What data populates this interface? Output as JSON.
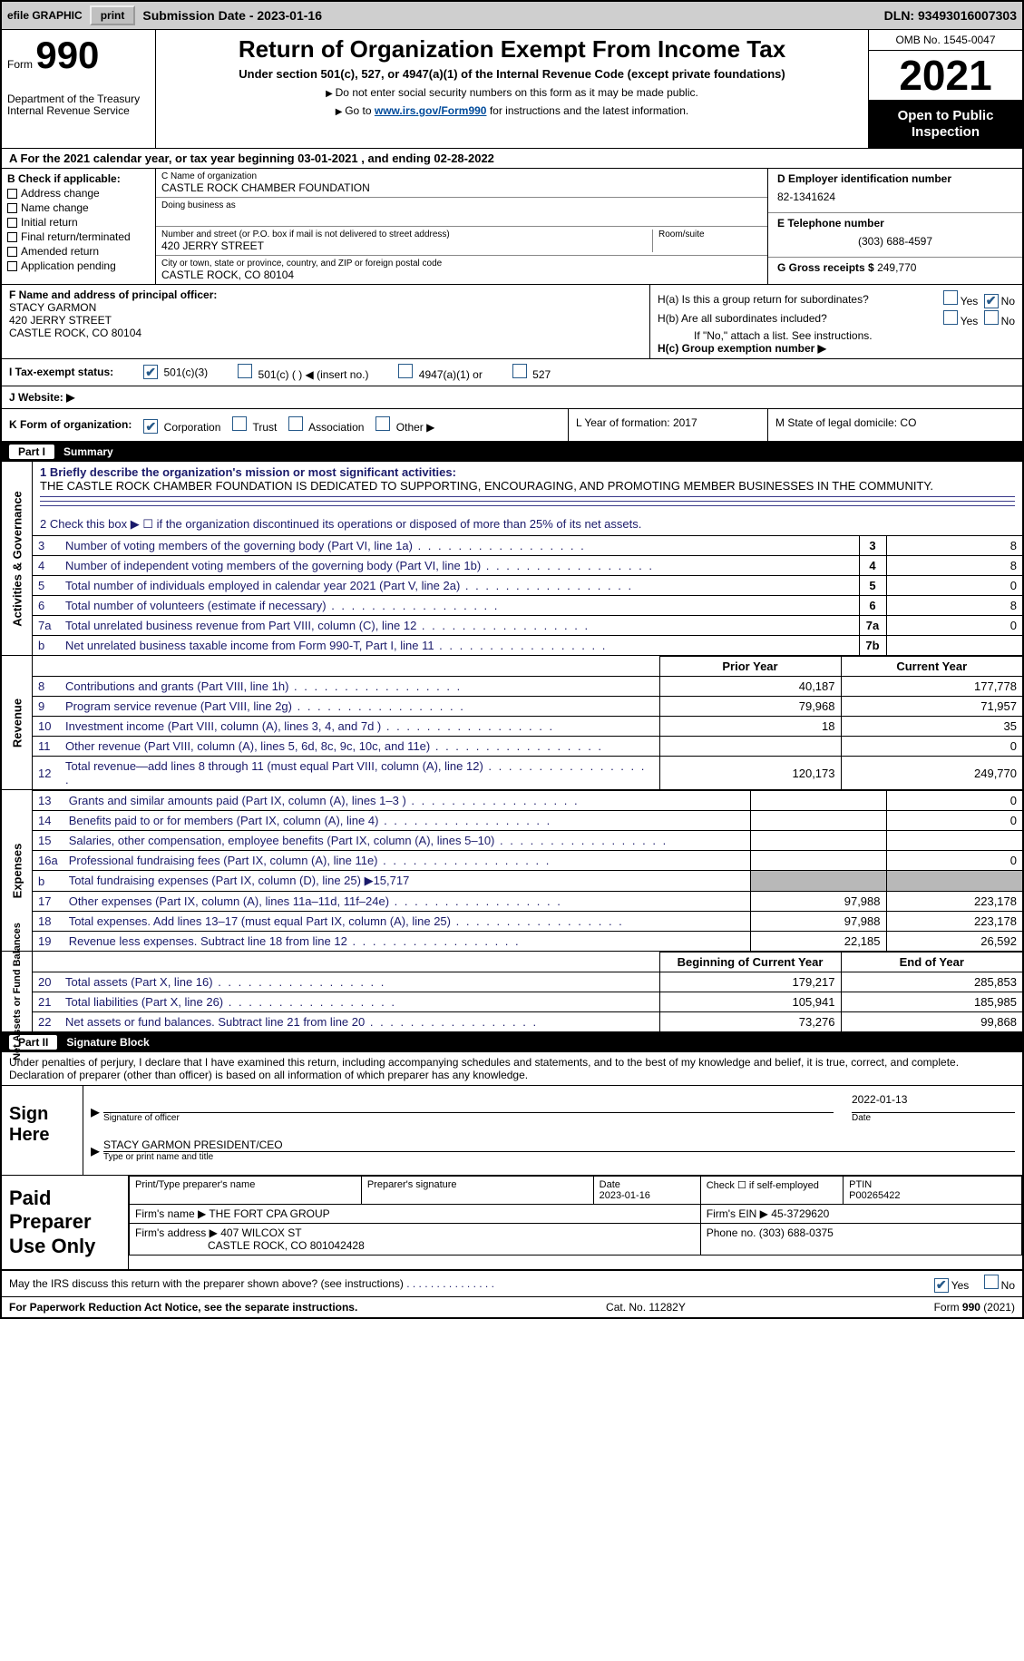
{
  "toolbar": {
    "efile": "efile GRAPHIC",
    "print": "print",
    "submission_label": "Submission Date - 2023-01-16",
    "dln": "DLN: 93493016007303"
  },
  "header": {
    "form_word": "Form",
    "form_no": "990",
    "title": "Return of Organization Exempt From Income Tax",
    "subtitle": "Under section 501(c), 527, or 4947(a)(1) of the Internal Revenue Code (except private foundations)",
    "note1": "Do not enter social security numbers on this form as it may be made public.",
    "note2_pre": "Go to ",
    "note2_link": "www.irs.gov/Form990",
    "note2_post": " for instructions and the latest information.",
    "dept": "Department of the Treasury\nInternal Revenue Service",
    "omb": "OMB No. 1545-0047",
    "year": "2021",
    "inspect": "Open to Public Inspection"
  },
  "row_a": "A  For the 2021 calendar year, or tax year beginning 03-01-2021    , and ending 02-28-2022",
  "section_b": {
    "b_label": "B Check if applicable:",
    "checks": [
      "Address change",
      "Name change",
      "Initial return",
      "Final return/terminated",
      "Amended return",
      "Application pending"
    ],
    "c_label": "C Name of organization",
    "c_name": "CASTLE ROCK CHAMBER FOUNDATION",
    "dba": "Doing business as",
    "street_label": "Number and street (or P.O. box if mail is not delivered to street address)",
    "room_label": "Room/suite",
    "street": "420 JERRY STREET",
    "city_label": "City or town, state or province, country, and ZIP or foreign postal code",
    "city": "CASTLE ROCK, CO   80104",
    "d_label": "D Employer identification number",
    "d_val": "82-1341624",
    "e_label": "E Telephone number",
    "e_val": "(303) 688-4597",
    "g_label": "G Gross receipts $",
    "g_val": "249,770"
  },
  "section_fgh": {
    "f_label": "F  Name and address of principal officer:",
    "f_name": "STACY GARMON",
    "f_addr1": "420 JERRY STREET",
    "f_addr2": "CASTLE ROCK, CO  80104",
    "ha": "H(a)  Is this a group return for subordinates?",
    "hb": "H(b)  Are all subordinates included?",
    "hb_note": "If \"No,\" attach a list. See instructions.",
    "hc": "H(c)  Group exemption number ▶",
    "yes": "Yes",
    "no": "No"
  },
  "row_i": {
    "label": "I  Tax-exempt status:",
    "opt1": "501(c)(3)",
    "opt2": "501(c) (  ) ◀ (insert no.)",
    "opt3": "4947(a)(1) or",
    "opt4": "527"
  },
  "row_j": "J  Website: ▶",
  "row_klm": {
    "k": "K Form of organization:",
    "k_opts": [
      "Corporation",
      "Trust",
      "Association",
      "Other ▶"
    ],
    "l": "L Year of formation: 2017",
    "m": "M State of legal domicile: CO"
  },
  "part1": {
    "chip": "Part I",
    "title": "Summary"
  },
  "summary": {
    "tab_gov": "Activities & Governance",
    "line1_label": "1  Briefly describe the organization's mission or most significant activities:",
    "line1_text": "THE CASTLE ROCK CHAMBER FOUNDATION IS DEDICATED TO SUPPORTING, ENCOURAGING, AND PROMOTING MEMBER BUSINESSES IN THE COMMUNITY.",
    "line2": "2    Check this box ▶ ☐  if the organization discontinued its operations or disposed of more than 25% of its net assets.",
    "rows_gov": [
      {
        "n": "3",
        "label": "Number of voting members of the governing body (Part VI, line 1a)",
        "box": "3",
        "val": "8"
      },
      {
        "n": "4",
        "label": "Number of independent voting members of the governing body (Part VI, line 1b)",
        "box": "4",
        "val": "8"
      },
      {
        "n": "5",
        "label": "Total number of individuals employed in calendar year 2021 (Part V, line 2a)",
        "box": "5",
        "val": "0"
      },
      {
        "n": "6",
        "label": "Total number of volunteers (estimate if necessary)",
        "box": "6",
        "val": "8"
      },
      {
        "n": "7a",
        "label": "Total unrelated business revenue from Part VIII, column (C), line 12",
        "box": "7a",
        "val": "0"
      },
      {
        "n": "b",
        "label": "Net unrelated business taxable income from Form 990-T, Part I, line 11",
        "box": "7b",
        "val": ""
      }
    ],
    "tab_rev": "Revenue",
    "head_prior": "Prior Year",
    "head_curr": "Current Year",
    "rows_rev": [
      {
        "n": "8",
        "label": "Contributions and grants (Part VIII, line 1h)",
        "p": "40,187",
        "c": "177,778"
      },
      {
        "n": "9",
        "label": "Program service revenue (Part VIII, line 2g)",
        "p": "79,968",
        "c": "71,957"
      },
      {
        "n": "10",
        "label": "Investment income (Part VIII, column (A), lines 3, 4, and 7d )",
        "p": "18",
        "c": "35"
      },
      {
        "n": "11",
        "label": "Other revenue (Part VIII, column (A), lines 5, 6d, 8c, 9c, 10c, and 11e)",
        "p": "",
        "c": "0"
      },
      {
        "n": "12",
        "label": "Total revenue—add lines 8 through 11 (must equal Part VIII, column (A), line 12)",
        "p": "120,173",
        "c": "249,770"
      }
    ],
    "tab_exp": "Expenses",
    "rows_exp": [
      {
        "n": "13",
        "label": "Grants and similar amounts paid (Part IX, column (A), lines 1–3 )",
        "p": "",
        "c": "0"
      },
      {
        "n": "14",
        "label": "Benefits paid to or for members (Part IX, column (A), line 4)",
        "p": "",
        "c": "0"
      },
      {
        "n": "15",
        "label": "Salaries, other compensation, employee benefits (Part IX, column (A), lines 5–10)",
        "p": "",
        "c": ""
      },
      {
        "n": "16a",
        "label": "Professional fundraising fees (Part IX, column (A), line 11e)",
        "p": "",
        "c": "0"
      },
      {
        "n": "b",
        "label": "Total fundraising expenses (Part IX, column (D), line 25) ▶15,717",
        "p": "GREY",
        "c": "GREY"
      },
      {
        "n": "17",
        "label": "Other expenses (Part IX, column (A), lines 11a–11d, 11f–24e)",
        "p": "97,988",
        "c": "223,178"
      },
      {
        "n": "18",
        "label": "Total expenses. Add lines 13–17 (must equal Part IX, column (A), line 25)",
        "p": "97,988",
        "c": "223,178"
      },
      {
        "n": "19",
        "label": "Revenue less expenses. Subtract line 18 from line 12",
        "p": "22,185",
        "c": "26,592"
      }
    ],
    "tab_net": "Net Assets or Fund Balances",
    "head_begin": "Beginning of Current Year",
    "head_end": "End of Year",
    "rows_net": [
      {
        "n": "20",
        "label": "Total assets (Part X, line 16)",
        "p": "179,217",
        "c": "285,853"
      },
      {
        "n": "21",
        "label": "Total liabilities (Part X, line 26)",
        "p": "105,941",
        "c": "185,985"
      },
      {
        "n": "22",
        "label": "Net assets or fund balances. Subtract line 21 from line 20",
        "p": "73,276",
        "c": "99,868"
      }
    ]
  },
  "part2": {
    "chip": "Part II",
    "title": "Signature Block"
  },
  "sig": {
    "decl": "Under penalties of perjury, I declare that I have examined this return, including accompanying schedules and statements, and to the best of my knowledge and belief, it is true, correct, and complete. Declaration of preparer (other than officer) is based on all information of which preparer has any knowledge.",
    "sign_here": "Sign Here",
    "sig_officer": "Signature of officer",
    "sig_date": "2022-01-13",
    "date_label": "Date",
    "name_title": "STACY GARMON  PRESIDENT/CEO",
    "type_label": "Type or print name and title"
  },
  "prep": {
    "label": "Paid Preparer Use Only",
    "h_name": "Print/Type preparer's name",
    "h_sig": "Preparer's signature",
    "h_date": "Date",
    "date_val": "2023-01-16",
    "h_self": "Check ☐ if self-employed",
    "h_ptin": "PTIN",
    "ptin_val": "P00265422",
    "firm_name_l": "Firm's name    ▶",
    "firm_name": "THE FORT CPA GROUP",
    "firm_ein_l": "Firm's EIN ▶",
    "firm_ein": "45-3729620",
    "firm_addr_l": "Firm's address ▶",
    "firm_addr1": "407 WILCOX ST",
    "firm_addr2": "CASTLE ROCK, CO  801042428",
    "phone_l": "Phone no.",
    "phone": "(303) 688-0375"
  },
  "may_row": {
    "q": "May the IRS discuss this return with the preparer shown above? (see instructions)",
    "yes": "Yes",
    "no": "No"
  },
  "footer": {
    "left": "For Paperwork Reduction Act Notice, see the separate instructions.",
    "mid": "Cat. No. 11282Y",
    "right": "Form 990 (2021)"
  },
  "colors": {
    "link": "#004b9b",
    "label": "#1a1a6a",
    "chk": "#275a8a"
  }
}
